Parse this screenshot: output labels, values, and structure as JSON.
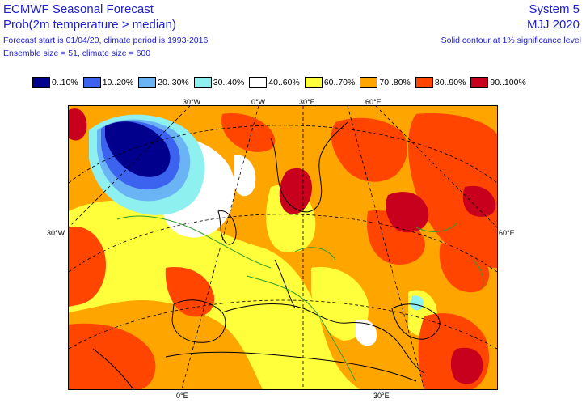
{
  "header": {
    "title": "ECMWF Seasonal Forecast",
    "subtitle": "Prob(2m temperature > median)",
    "line3": "Forecast start is 01/04/20, climate period is 1993-2016",
    "line4": "Ensemble size = 51, climate size = 600",
    "system": "System 5",
    "period": "MJJ 2020",
    "note": "Solid contour at 1% significance level"
  },
  "legend": [
    {
      "label": "0..10%",
      "color": "#00008c"
    },
    {
      "label": "10..20%",
      "color": "#3b63f0"
    },
    {
      "label": "20..30%",
      "color": "#6ab4f5"
    },
    {
      "label": "30..40%",
      "color": "#8ff0f0"
    },
    {
      "label": "40..60%",
      "color": "#ffffff"
    },
    {
      "label": "60..70%",
      "color": "#ffff3c"
    },
    {
      "label": "70..80%",
      "color": "#ffa500"
    },
    {
      "label": "80..90%",
      "color": "#ff4500"
    },
    {
      "label": "90..100%",
      "color": "#c8001e"
    }
  ],
  "axis_labels": {
    "top_30w": "30°W",
    "top_0e": "0°W",
    "top_30e": "30°E",
    "top_60e": "60°E",
    "left_30w": "30°W",
    "right_60e": "60°E",
    "bottom_0e": "0°E",
    "bottom_30e": "30°E"
  }
}
